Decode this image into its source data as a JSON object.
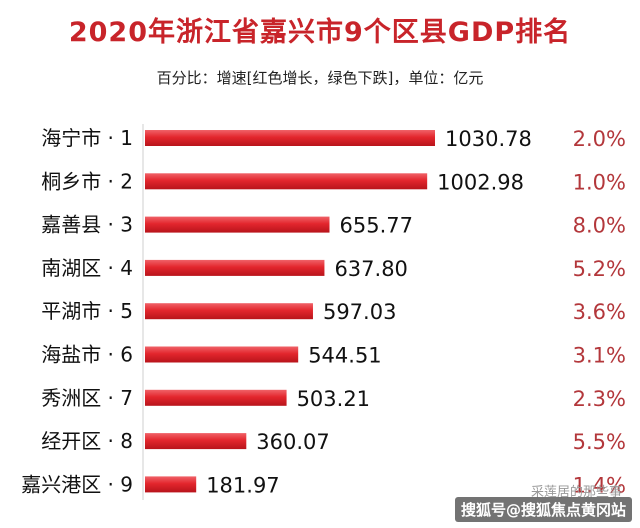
{
  "chart_data": {
    "type": "bar",
    "orientation": "horizontal",
    "title": "2020年浙江省嘉兴市9个区县GDP排名",
    "subtitle": "百分比：增速[红色增长，绿色下跌]，单位：亿元",
    "categories": [
      "海宁市 · 1",
      "桐乡市 · 2",
      "嘉善县 · 3",
      "南湖区 · 4",
      "平湖市 · 5",
      "海盐市 · 6",
      "秀洲区 · 7",
      "经开区 · 8",
      "嘉兴港区 · 9"
    ],
    "values": [
      1030.78,
      1002.98,
      655.77,
      637.8,
      597.03,
      544.51,
      503.21,
      360.07,
      181.97
    ],
    "value_labels": [
      "1030.78",
      "1002.98",
      "655.77",
      "637.80",
      "597.03",
      "544.51",
      "503.21",
      "360.07",
      "181.97"
    ],
    "growth": [
      "2.0%",
      "1.0%",
      "8.0%",
      "5.2%",
      "3.6%",
      "3.1%",
      "2.3%",
      "5.5%",
      "1.4%"
    ],
    "xlim": [
      0,
      1100
    ],
    "bar_color": "#e3262d",
    "growth_color": "#b3373b",
    "grid": false,
    "legend": "none"
  },
  "watermark": {
    "small": "采莲居的那些事",
    "main": "搜狐号@搜狐焦点黄冈站"
  }
}
